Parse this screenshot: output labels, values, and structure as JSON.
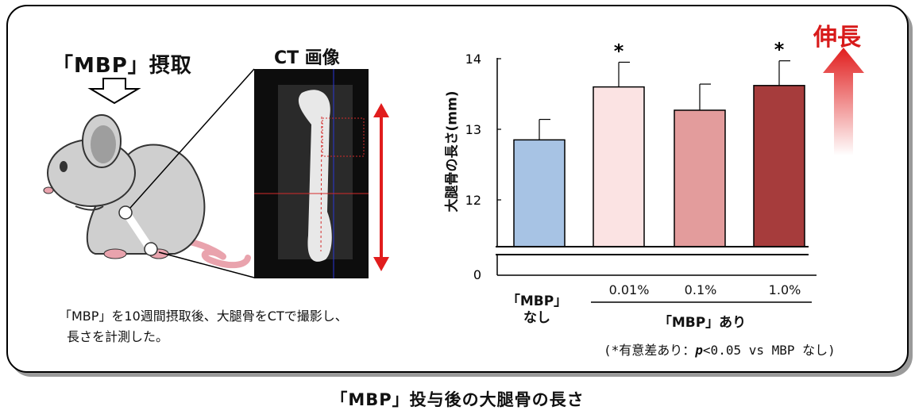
{
  "intake_label": "「MBP」摂取",
  "ct_label": "CT 画像",
  "description": {
    "line1": "「MBP」を10週間摂取後、大腿骨をCTで撮影し、",
    "line2": "長さを計測した。"
  },
  "caption": "「MBP」投与後の大腿骨の長さ",
  "footnote": {
    "prefix": "(*有意差あり：",
    "p": "p",
    "suffix": "<0.05 vs MBP なし)"
  },
  "extension_label": "伸長",
  "colors": {
    "arrow_red": "#e11d1d",
    "axis": "#000000"
  },
  "chart_data": {
    "type": "bar",
    "ylabel": "大腿骨の長さ(mm)",
    "y_axis_break": true,
    "yticks": [
      "0",
      "12",
      "13",
      "14"
    ],
    "ylim": [
      11.5,
      14
    ],
    "categories": [
      "「MBP」なし",
      "0.01%",
      "0.1%",
      "1.0%"
    ],
    "x_tick_labels": {
      "none_line1": "「MBP」",
      "none_line2": "なし",
      "dose1": "0.01%",
      "dose2": "0.1%",
      "dose3": "1.0%"
    },
    "group_label": "「MBP」あり",
    "values": [
      12.85,
      13.6,
      13.27,
      13.62
    ],
    "errors": [
      0.29,
      0.35,
      0.37,
      0.35
    ],
    "significance": [
      "",
      "*",
      "",
      "*"
    ],
    "bar_colors": [
      "#a7c3e4",
      "#fbe3e3",
      "#e39c9c",
      "#a63c3c"
    ]
  }
}
